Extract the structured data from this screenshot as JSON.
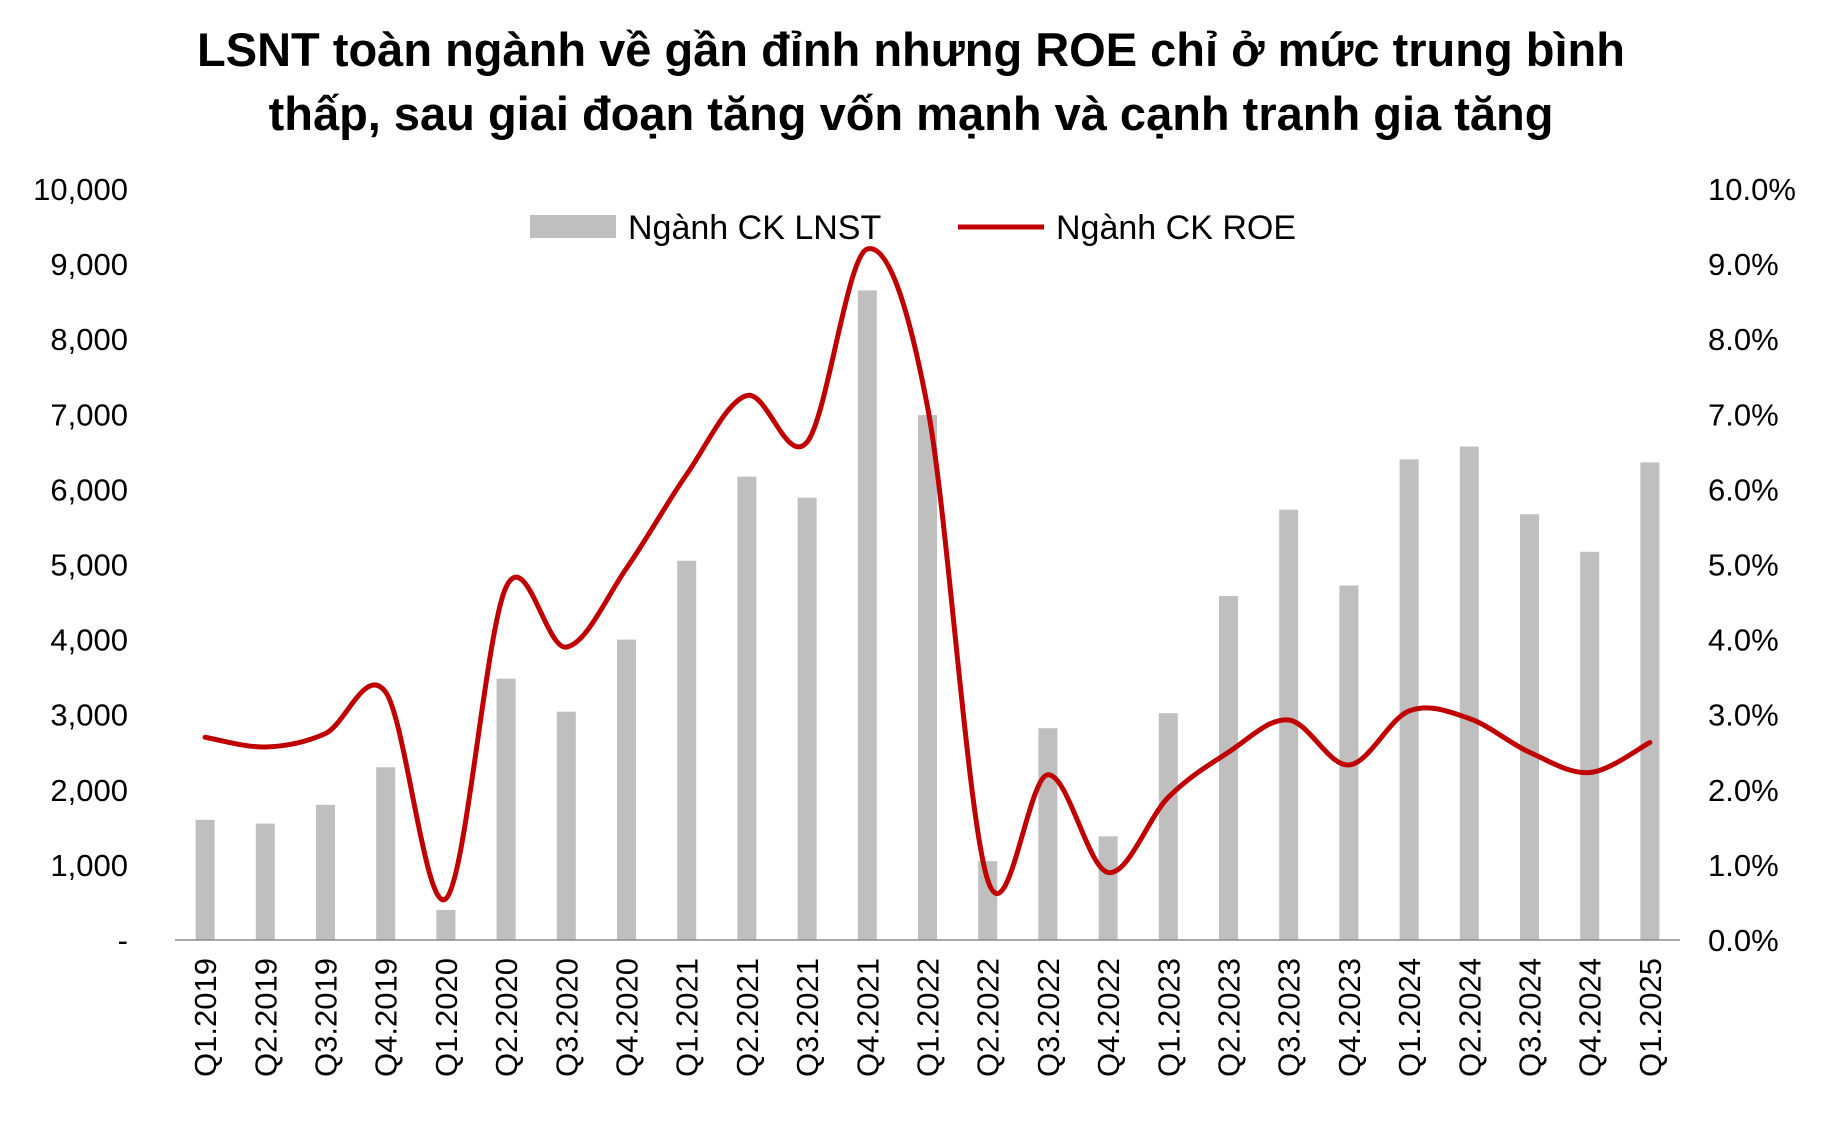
{
  "chart_data": {
    "type": "bar",
    "title": "LSNT toàn ngành về gần đỉnh nhưng ROE chỉ ở mức trung bình thấp, sau giai đoạn tăng vốn mạnh và cạnh tranh gia tăng",
    "title_lines": [
      "LSNT toàn ngành về gần đỉnh nhưng ROE chỉ ở mức trung bình",
      "thấp, sau giai đoạn tăng vốn mạnh và cạnh tranh gia tăng"
    ],
    "categories": [
      "Q1.2019",
      "Q2.2019",
      "Q3.2019",
      "Q4.2019",
      "Q1.2020",
      "Q2.2020",
      "Q3.2020",
      "Q4.2020",
      "Q1.2021",
      "Q2.2021",
      "Q3.2021",
      "Q4.2021",
      "Q1.2022",
      "Q2.2022",
      "Q3.2022",
      "Q4.2022",
      "Q1.2023",
      "Q2.2023",
      "Q3.2023",
      "Q4.2023",
      "Q1.2024",
      "Q2.2024",
      "Q3.2024",
      "Q4.2024",
      "Q1.2025"
    ],
    "series": [
      {
        "name": "Ngành CK LNST",
        "type": "bar",
        "axis": "left",
        "color": "#bfbfbf",
        "values": [
          1600,
          1550,
          1800,
          2300,
          400,
          3480,
          3040,
          4000,
          5050,
          6170,
          5890,
          8650,
          6990,
          1050,
          2820,
          1380,
          3020,
          4580,
          5730,
          4720,
          6400,
          6570,
          5670,
          5170,
          6360
        ]
      },
      {
        "name": "Ngành CK ROE",
        "type": "line",
        "axis": "right",
        "color": "#c00000",
        "values": [
          2.7,
          2.57,
          2.75,
          3.3,
          0.55,
          4.7,
          3.9,
          4.95,
          6.2,
          7.25,
          6.63,
          9.2,
          7.1,
          0.8,
          2.2,
          0.9,
          1.9,
          2.5,
          2.93,
          2.33,
          3.05,
          2.95,
          2.5,
          2.23,
          2.63
        ]
      }
    ],
    "left_axis": {
      "ylim": [
        0,
        10000
      ],
      "ticks": [
        "-",
        "1,000",
        "2,000",
        "3,000",
        "4,000",
        "5,000",
        "6,000",
        "7,000",
        "8,000",
        "9,000",
        "10,000"
      ]
    },
    "right_axis": {
      "ylim": [
        0,
        10
      ],
      "ticks": [
        "0.0%",
        "1.0%",
        "2.0%",
        "3.0%",
        "4.0%",
        "5.0%",
        "6.0%",
        "7.0%",
        "8.0%",
        "9.0%",
        "10.0%"
      ]
    },
    "xlabel": "",
    "ylabel": "",
    "grid": false,
    "legend": "top-center"
  }
}
